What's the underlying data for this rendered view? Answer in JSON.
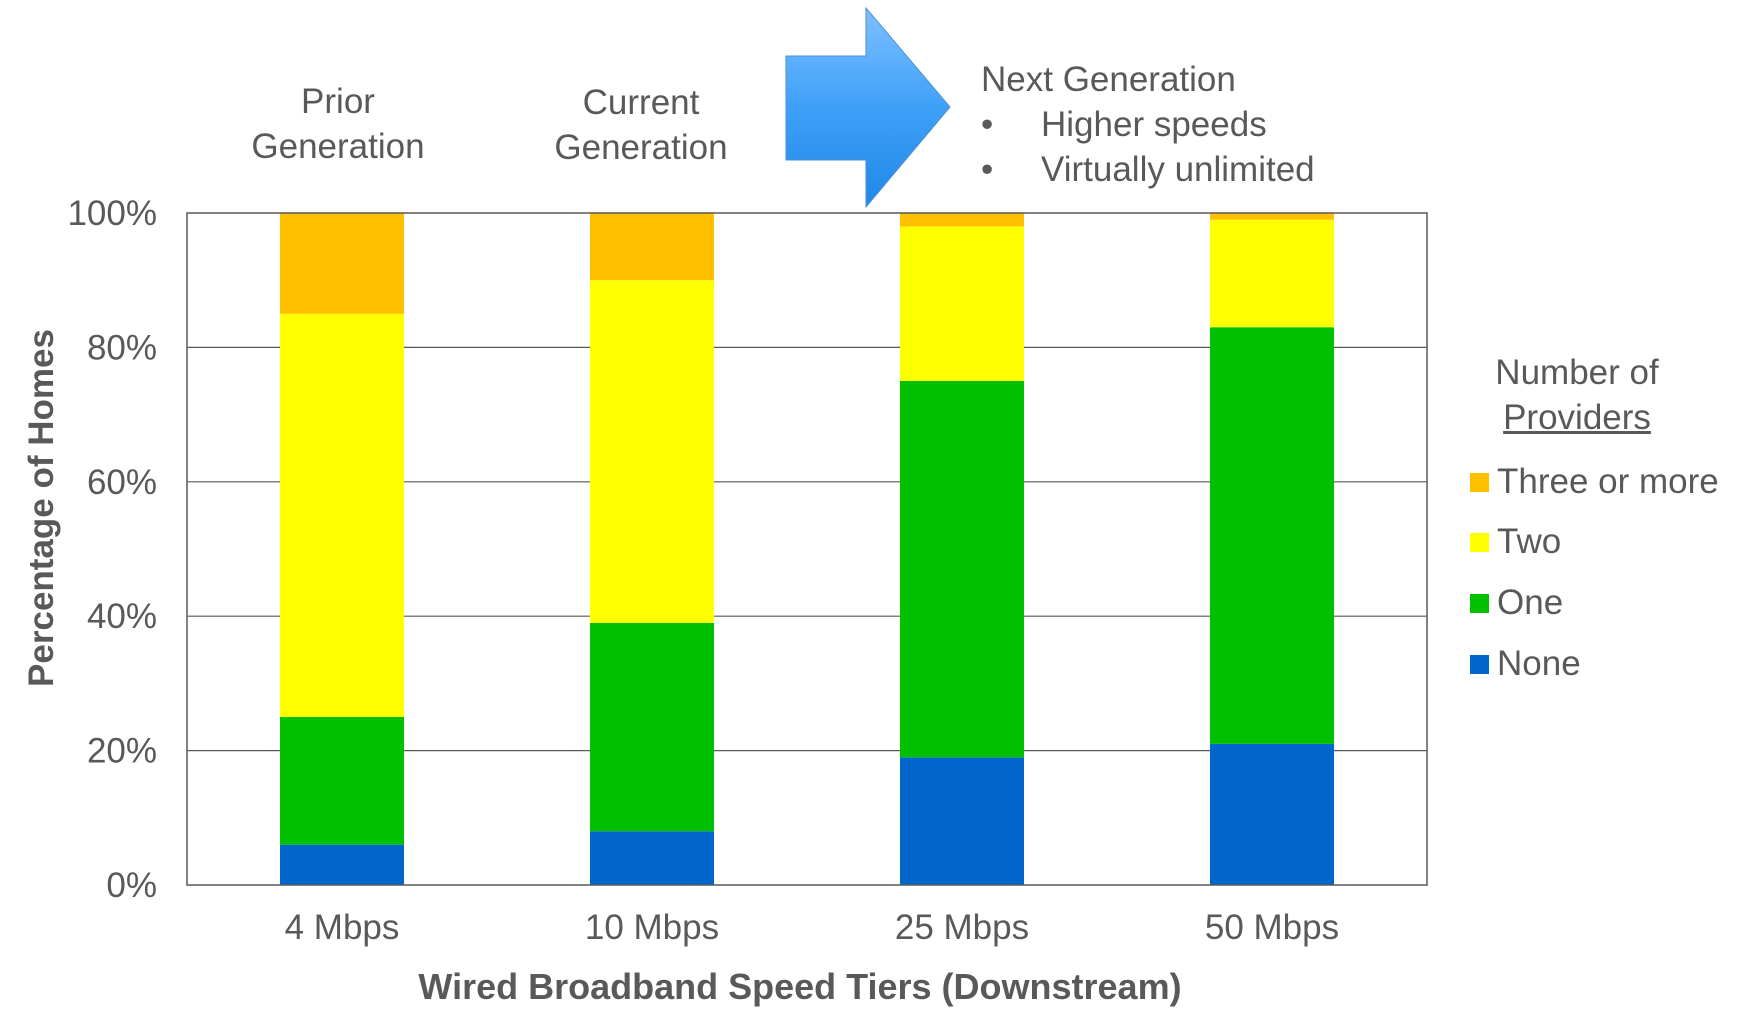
{
  "chart_data": {
    "type": "bar",
    "stacked": true,
    "categories": [
      "4 Mbps",
      "10 Mbps",
      "25 Mbps",
      "50 Mbps"
    ],
    "series": [
      {
        "name": "None",
        "color": "#0066CC",
        "values": [
          6,
          8,
          19,
          21
        ]
      },
      {
        "name": "One",
        "color": "#00C000",
        "values": [
          19,
          31,
          56,
          62
        ]
      },
      {
        "name": "Two",
        "color": "#FFFF00",
        "values": [
          60,
          51,
          23,
          16
        ]
      },
      {
        "name": "Three or more",
        "color": "#FFC000",
        "values": [
          15,
          10,
          2,
          1
        ]
      }
    ],
    "ylim": [
      0,
      100
    ],
    "yticks": [
      "0%",
      "20%",
      "40%",
      "60%",
      "80%",
      "100%"
    ],
    "ylabel": "Percentage of Homes",
    "xlabel": "Wired Broadband Speed Tiers (Downstream)",
    "legend": {
      "title_line1": "Number of",
      "title_line2": "Providers",
      "placement": "right",
      "order": [
        "Three or more",
        "Two",
        "One",
        "None"
      ]
    },
    "grid": true
  },
  "annotations": {
    "prior_line1": "Prior",
    "prior_line2": "Generation",
    "current_line1": "Current",
    "current_line2": "Generation",
    "next_title": "Next Generation",
    "bullet": "•",
    "next_bullets": [
      "Higher speeds",
      "Virtually unlimited"
    ],
    "arrow_icon": "right-arrow-icon"
  }
}
